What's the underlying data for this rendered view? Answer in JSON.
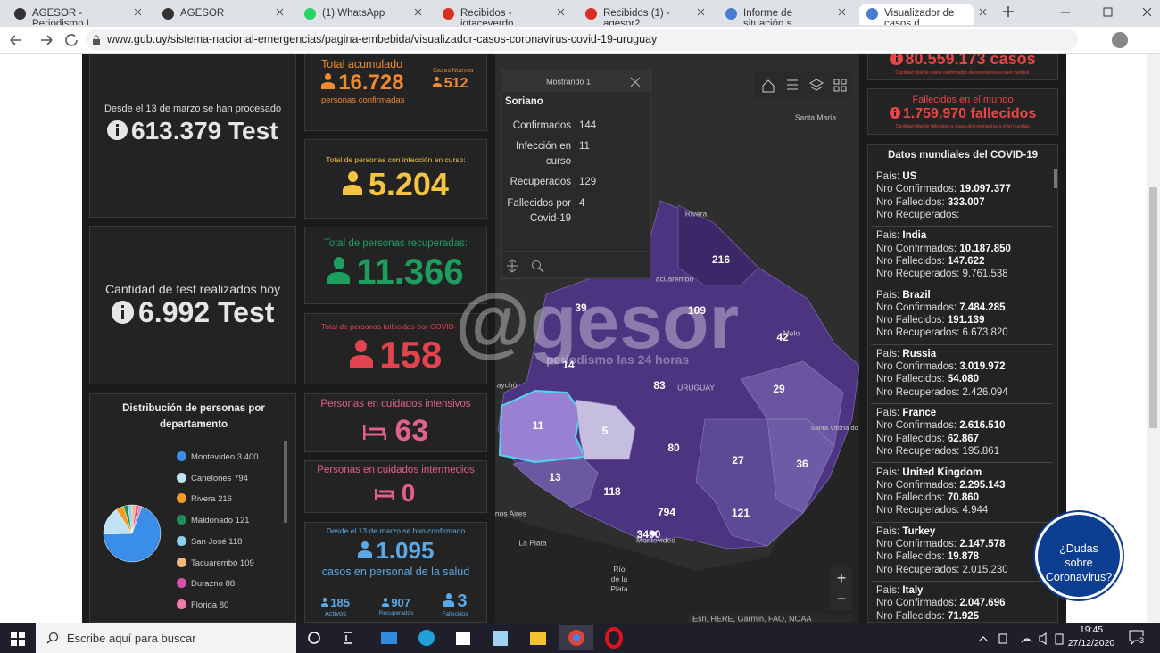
{
  "browser": {
    "tabs": [
      "AGESOR - Periodismo I",
      "AGESOR",
      "(1) WhatsApp",
      "Recibidos - jotaceverdo",
      "Recibidos (1) - agesor2",
      "Informe de situación s",
      "Visualizador de casos d"
    ],
    "url": "www.gub.uy/sistema-nacional-emergencias/pagina-embebida/visualizador-casos-coronavirus-covid-19-uruguay"
  },
  "left": {
    "processed": {
      "label": "Desde el 13 de marzo se han procesado",
      "value": "613.379 Test"
    },
    "today": {
      "label": "Cantidad de test realizados hoy",
      "value": "6.992 Test"
    },
    "distribution": {
      "title": "Distribución de personas por departamento",
      "items": [
        {
          "name": "Montevideo",
          "value": 3400,
          "label": "3.400",
          "color": "#3b8ee8"
        },
        {
          "name": "Canelones",
          "value": 794,
          "color": "#bfe3f5"
        },
        {
          "name": "Rivera",
          "value": 216,
          "color": "#f59a22"
        },
        {
          "name": "Maldonado",
          "value": 121,
          "color": "#1e8f5a"
        },
        {
          "name": "San José",
          "value": 118,
          "color": "#8fd0f0"
        },
        {
          "name": "Tacuarembó",
          "value": 109,
          "color": "#f5b87a"
        },
        {
          "name": "Durazno",
          "value": 88,
          "color": "#d94fa8"
        },
        {
          "name": "Florida",
          "value": 80,
          "color": "#f07aa8"
        }
      ]
    }
  },
  "center": {
    "total": {
      "label": "Total acumulado",
      "value": "16.728",
      "sub": "personas confirmadas",
      "new_label": "Casos Nuevos",
      "new_value": "512"
    },
    "active": {
      "label": "Total de personas con infección en curso:",
      "value": "5.204"
    },
    "recovered": {
      "label": "Total de personas recuperadas:",
      "value": "11.366"
    },
    "deaths": {
      "label": "Total de personas fallecidas por COVID-",
      "value": "158"
    },
    "icu": {
      "label": "Personas en cuidados intensivos",
      "value": "63"
    },
    "intermediate": {
      "label": "Personas en cuidados intermedios",
      "value": "0"
    },
    "health": {
      "label": "Desde el 13 de marzo se han confirmado",
      "value": "1.095",
      "sub": "casos en personal de la salud",
      "active": "185",
      "active_label": "Activos",
      "recovered": "907",
      "recovered_label": "Recuperados",
      "deaths": "3",
      "deaths_label": "Fallecidos"
    }
  },
  "map": {
    "popup": {
      "header": "Mostrando 1",
      "title": "Soriano",
      "rows": [
        {
          "label": "Confirmados",
          "value": "144"
        },
        {
          "label": "Infección en curso",
          "value": "11"
        },
        {
          "label": "Recuperados",
          "value": "129"
        },
        {
          "label": "Fallecidos por Covid-19",
          "value": "4"
        }
      ]
    },
    "departments": [
      "216",
      "39",
      "109",
      "42",
      "14",
      "83",
      "29",
      "11",
      "5",
      "80",
      "27",
      "36",
      "13",
      "118",
      "794",
      "121",
      "3400"
    ],
    "places": [
      "Santa María",
      "Rivera",
      "acuarembó",
      "Melo",
      "URUGUAY",
      "aychú",
      "Santa Vitória do Palmar",
      "Montevideo",
      "enos Aires",
      "La Plata",
      "Río de la Plata"
    ],
    "zoom": [
      "+",
      "−"
    ],
    "attribution": "Esri, HERE, Garmin, FAO, NOAA"
  },
  "watermark": {
    "logo": "@gesor",
    "tagline": "periodismo las 24 horas"
  },
  "right": {
    "world_cases": {
      "value": "80.559.173 casos",
      "sub": "Cantidad total de casos confirmados de coronavirus a nivel mundial."
    },
    "world_deaths": {
      "label": "Fallecidos en el mundo",
      "value": "1.759.970 fallecidos",
      "sub": "Cantidad total de fallecidos a causa del coronavirus a nivel mundial."
    },
    "list": {
      "title": "Datos mundiales del COVID-19",
      "labels": {
        "country": "País:",
        "confirmed": "Nro Confirmados:",
        "deaths": "Nro Fallecidos:",
        "recovered": "Nro Recuperados:"
      },
      "countries": [
        {
          "name": "US",
          "confirmed": "19.097.377",
          "deaths": "333.007"
        },
        {
          "name": "India",
          "confirmed": "10.187.850",
          "deaths": "147.622",
          "recovered": "9.761.538"
        },
        {
          "name": "Brazil",
          "confirmed": "7.484.285",
          "deaths": "191.139",
          "recovered": "6.673.820"
        },
        {
          "name": "Russia",
          "confirmed": "3.019.972",
          "deaths": "54.080",
          "recovered": "2.426.094"
        },
        {
          "name": "France",
          "confirmed": "2.616.510",
          "deaths": "62.867",
          "recovered": "195.861"
        },
        {
          "name": "United Kingdom",
          "confirmed": "2.295.143",
          "deaths": "70.860",
          "recovered": "4.944"
        },
        {
          "name": "Turkey",
          "confirmed": "2.147.578",
          "deaths": "19.878",
          "recovered": "2.015.230"
        },
        {
          "name": "Italy",
          "confirmed": "2.047.696",
          "deaths": "71.925"
        }
      ]
    }
  },
  "help": "¿Dudas sobre Coronavirus?",
  "taskbar": {
    "search": "Escribe aquí para buscar",
    "time": "19:45",
    "date": "27/12/2020",
    "notifications": "3"
  }
}
